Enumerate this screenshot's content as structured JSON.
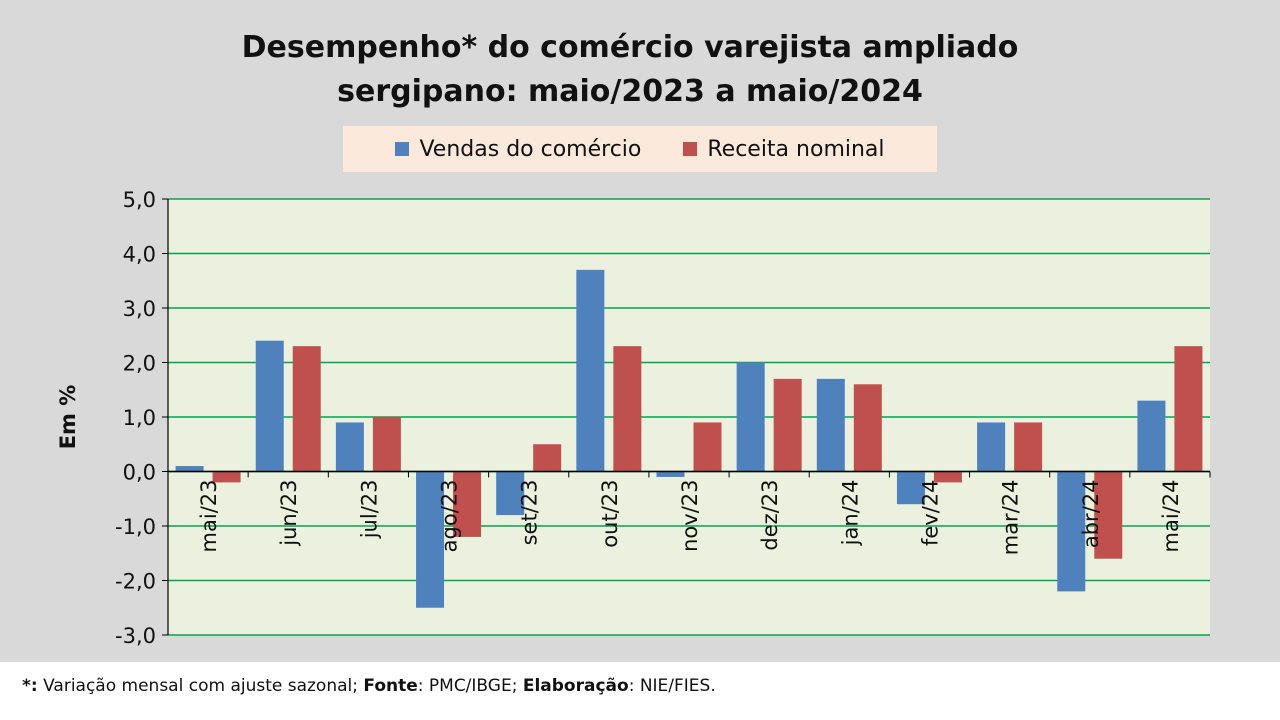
{
  "chart_data": {
    "type": "bar",
    "title_line1": "Desempenho* do comércio varejista ampliado",
    "title_line2": "sergipano: maio/2023 a maio/2024",
    "ylabel": "Em %",
    "ylim": [
      -3.0,
      5.0
    ],
    "yticks": [
      "5,0",
      "4,0",
      "3,0",
      "2,0",
      "1,0",
      "0,0",
      "-1,0",
      "-2,0",
      "-3,0"
    ],
    "grid": true,
    "legend_position": "top-center",
    "categories": [
      "mai/23",
      "jun/23",
      "jul/23",
      "ago/23",
      "set/23",
      "out/23",
      "nov/23",
      "dez/23",
      "jan/24",
      "fev/24",
      "mar/24",
      "abr/24",
      "mai/24"
    ],
    "series": [
      {
        "name": "Vendas do comércio",
        "color": "#4f81bd",
        "values": [
          0.1,
          2.4,
          0.9,
          -2.5,
          -0.8,
          3.7,
          -0.1,
          2.0,
          1.7,
          -0.6,
          0.9,
          -2.2,
          1.3
        ]
      },
      {
        "name": "Receita nominal",
        "color": "#c0504d",
        "values": [
          -0.2,
          2.3,
          1.0,
          -1.2,
          0.5,
          2.3,
          0.9,
          1.7,
          1.6,
          -0.2,
          0.9,
          -1.6,
          2.3
        ]
      }
    ]
  },
  "footnote": {
    "star": "*:",
    "star_text": " Variação mensal com ajuste sazonal; ",
    "fonte_label": "Fonte",
    "fonte_text": ": PMC/IBGE; ",
    "elab_label": "Elaboração",
    "elab_text": ": NIE/FIES."
  },
  "colors": {
    "plot_bg": "#ebf1de",
    "grid": "#00a651",
    "page_bg": "#d9d9d9"
  }
}
